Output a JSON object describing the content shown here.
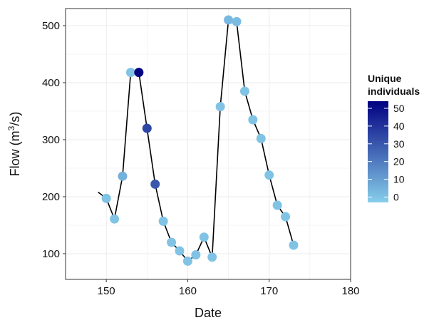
{
  "chart_data": {
    "type": "scatter",
    "xlabel": "Date",
    "ylabel": "Flow  (m³/s)",
    "xlim": [
      145,
      180
    ],
    "ylim": [
      55,
      530
    ],
    "x_ticks": [
      150,
      160,
      170,
      180
    ],
    "y_ticks": [
      100,
      200,
      300,
      400,
      500
    ],
    "grid": true,
    "line": {
      "x": [
        149,
        150,
        151,
        152,
        153,
        154,
        155,
        156,
        157,
        158,
        159,
        160,
        161,
        162,
        163,
        164,
        165,
        166,
        167,
        168,
        169,
        170,
        171,
        172,
        173
      ],
      "y": [
        208,
        197,
        161,
        236,
        418,
        418,
        320,
        222,
        157,
        120,
        105,
        87,
        98,
        129,
        94,
        358,
        510,
        507,
        385,
        335,
        302,
        238,
        185,
        165,
        115
      ]
    },
    "points": [
      {
        "x": 150,
        "y": 197,
        "individuals": 0
      },
      {
        "x": 151,
        "y": 161,
        "individuals": 0
      },
      {
        "x": 152,
        "y": 236,
        "individuals": 5
      },
      {
        "x": 153,
        "y": 418,
        "individuals": 0
      },
      {
        "x": 154,
        "y": 418,
        "individuals": 53
      },
      {
        "x": 155,
        "y": 320,
        "individuals": 35
      },
      {
        "x": 156,
        "y": 222,
        "individuals": 30
      },
      {
        "x": 157,
        "y": 157,
        "individuals": 0
      },
      {
        "x": 158,
        "y": 120,
        "individuals": 0
      },
      {
        "x": 159,
        "y": 105,
        "individuals": 0
      },
      {
        "x": 160,
        "y": 87,
        "individuals": 0
      },
      {
        "x": 161,
        "y": 98,
        "individuals": 0
      },
      {
        "x": 162,
        "y": 129,
        "individuals": 0
      },
      {
        "x": 163,
        "y": 94,
        "individuals": 0
      },
      {
        "x": 164,
        "y": 358,
        "individuals": 0
      },
      {
        "x": 165,
        "y": 510,
        "individuals": 3
      },
      {
        "x": 166,
        "y": 507,
        "individuals": 2
      },
      {
        "x": 167,
        "y": 385,
        "individuals": 0
      },
      {
        "x": 168,
        "y": 335,
        "individuals": 0
      },
      {
        "x": 169,
        "y": 302,
        "individuals": 0
      },
      {
        "x": 170,
        "y": 238,
        "individuals": 0
      },
      {
        "x": 171,
        "y": 185,
        "individuals": 0
      },
      {
        "x": 172,
        "y": 165,
        "individuals": 0
      },
      {
        "x": 173,
        "y": 115,
        "individuals": 0
      }
    ],
    "legend": {
      "title_line1": "Unique",
      "title_line2": "individuals",
      "placement": "right",
      "min": -3,
      "max": 54,
      "ticks": [
        0,
        10,
        20,
        30,
        40,
        50
      ],
      "color_low": "#87ceeb",
      "color_high": "#000080"
    },
    "colors": {
      "line": "#000000",
      "panel_border": "#333333",
      "grid": "#ebebeb"
    }
  }
}
